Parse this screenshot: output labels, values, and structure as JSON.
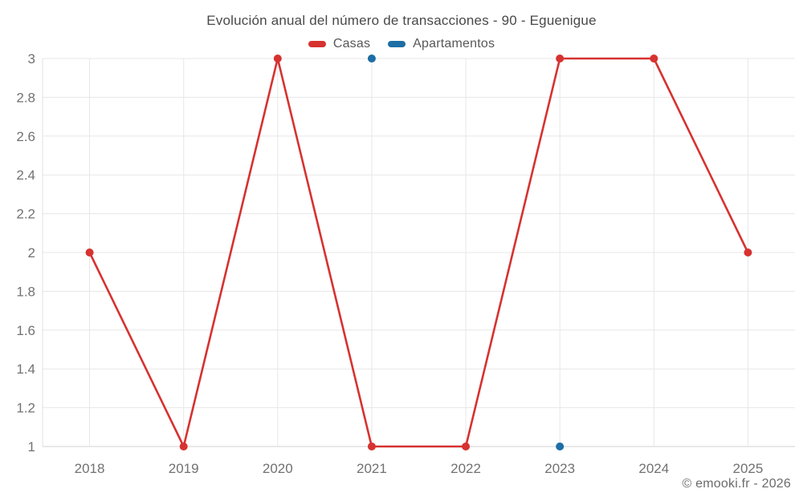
{
  "title": "Evolución anual del número de transacciones - 90 - Eguenigue",
  "legend": {
    "items": [
      {
        "label": "Casas",
        "color": "#d63230"
      },
      {
        "label": "Apartamentos",
        "color": "#1c6ea4"
      }
    ]
  },
  "footer": {
    "credit": "© emooki.fr - 2026"
  },
  "chart_data": {
    "type": "line",
    "title": "Evolución anual del número de transacciones - 90 - Eguenigue",
    "categories": [
      "2018",
      "2019",
      "2020",
      "2021",
      "2022",
      "2023",
      "2024",
      "2025"
    ],
    "series": [
      {
        "name": "Casas",
        "color": "#d63230",
        "values": [
          2,
          1,
          3,
          1,
          1,
          3,
          3,
          2
        ]
      },
      {
        "name": "Apartamentos",
        "color": "#1c6ea4",
        "values": [
          null,
          null,
          null,
          3,
          null,
          1,
          null,
          null
        ]
      }
    ],
    "xlabel": "",
    "ylabel": "",
    "ylim": [
      1,
      3
    ],
    "ytick_step": 0.2,
    "grid": true,
    "legend_position": "top",
    "marker_radius": 5,
    "line_width": 2.6
  },
  "colors": {
    "grid": "#e7e7e7",
    "axis_bottom": "#d0d0d0",
    "axis_left": "#e2e2e2",
    "tick_label": "#717171",
    "title_text": "#494949",
    "legend_text": "#585858",
    "footer_text": "#6b6b6b",
    "background": "#ffffff"
  }
}
